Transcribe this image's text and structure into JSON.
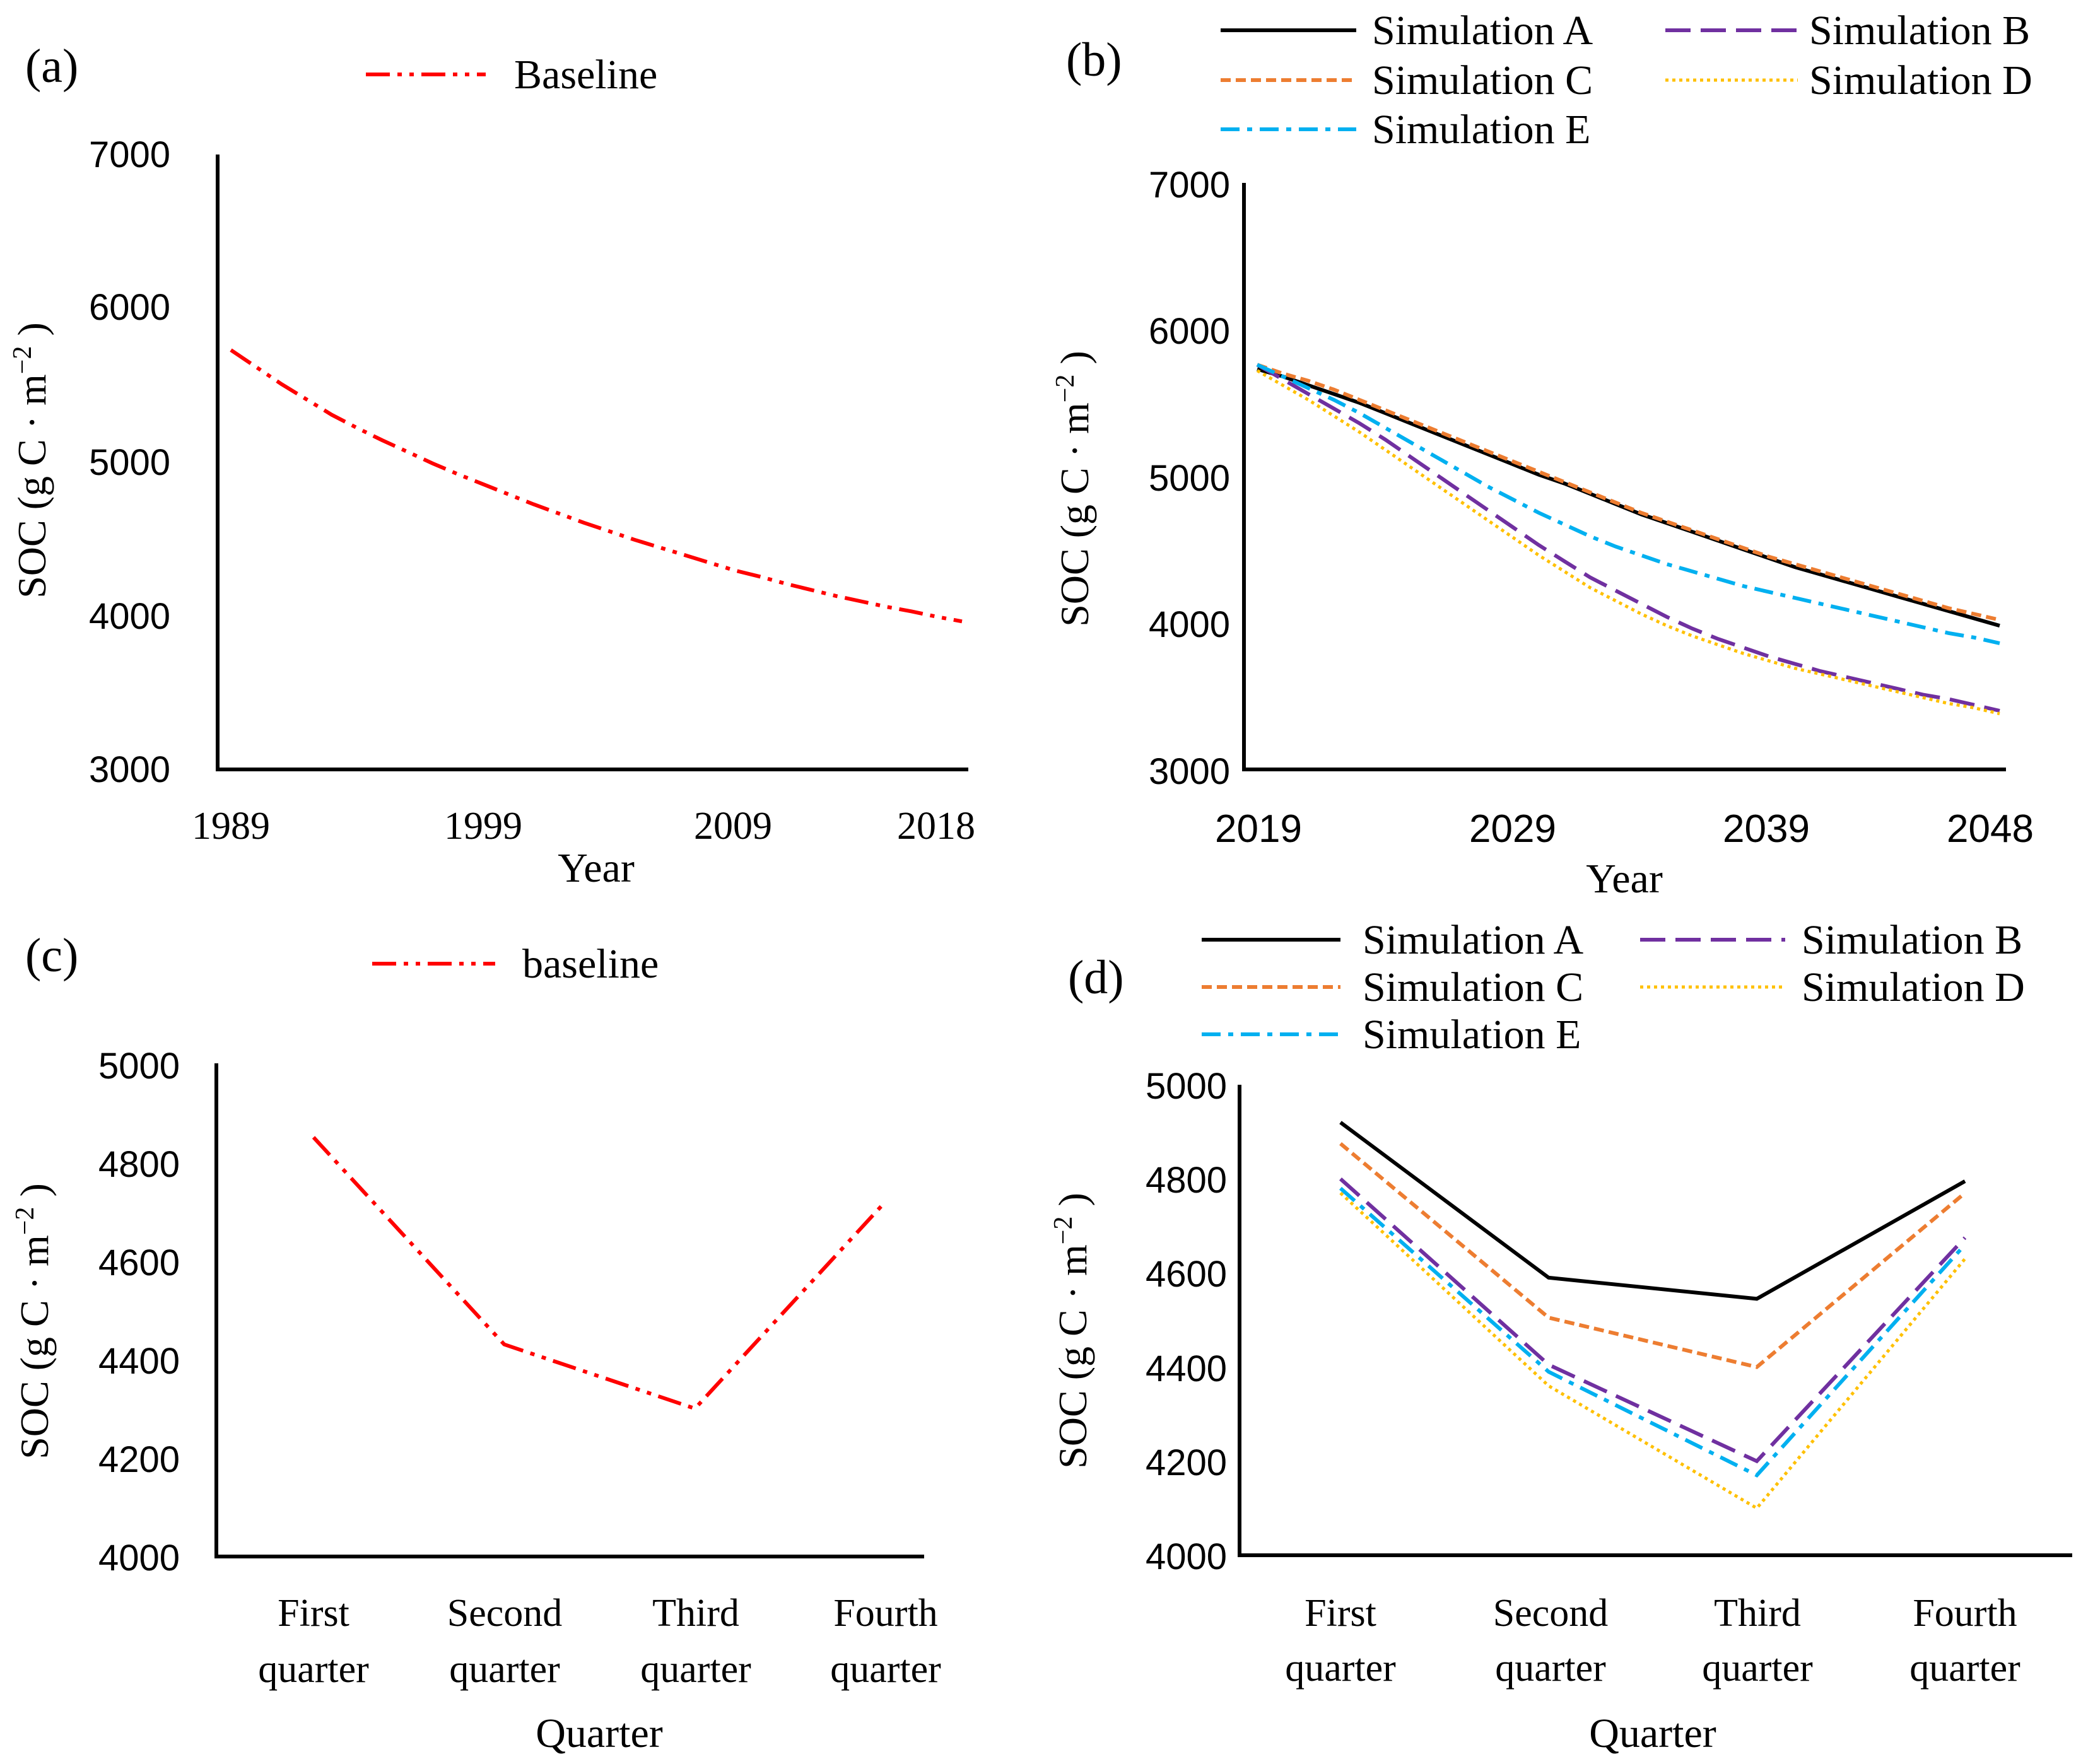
{
  "chart_data": [
    {
      "type": "line",
      "panel": "(a)",
      "x": [
        "1989",
        "1990",
        "1991",
        "1992",
        "1993",
        "1994",
        "1995",
        "1996",
        "1997",
        "1998",
        "1999",
        "2000",
        "2001",
        "2002",
        "2003",
        "2004",
        "2005",
        "2006",
        "2007",
        "2008",
        "2009",
        "2010",
        "2011",
        "2012",
        "2013",
        "2014",
        "2015",
        "2016",
        "2017",
        "2018"
      ],
      "xticks": [
        "1989",
        "1999",
        "2009",
        "2018"
      ],
      "xlabel": "Year",
      "ylabel_main": "SOC (g C · m",
      "ylabel_sup": "−2",
      "ylabel_end": " )",
      "ylim": [
        3000,
        7000
      ],
      "yticks": [
        "3000",
        "4000",
        "5000",
        "6000",
        "7000"
      ],
      "series": [
        {
          "name": "Baseline",
          "color": "#FF0000",
          "dash": "dash-dot-dot",
          "values": [
            5720,
            5610,
            5500,
            5400,
            5300,
            5215,
            5135,
            5060,
            4985,
            4915,
            4850,
            4785,
            4720,
            4660,
            4600,
            4545,
            4490,
            4440,
            4390,
            4340,
            4290,
            4250,
            4205,
            4165,
            4125,
            4090,
            4055,
            4025,
            3990,
            3960
          ]
        }
      ]
    },
    {
      "type": "line",
      "panel": "(b)",
      "x": [
        "2019",
        "2020",
        "2021",
        "2022",
        "2023",
        "2024",
        "2025",
        "2026",
        "2027",
        "2028",
        "2029",
        "2030",
        "2031",
        "2032",
        "2033",
        "2034",
        "2035",
        "2036",
        "2037",
        "2038",
        "2039",
        "2040",
        "2041",
        "2042",
        "2043",
        "2044",
        "2045",
        "2046",
        "2047",
        "2048"
      ],
      "xticks": [
        "2019",
        "2029",
        "2039",
        "2048"
      ],
      "xlabel": "Year",
      "ylabel_main": "SOC (g C · m",
      "ylabel_sup": "−2",
      "ylabel_end": " )",
      "ylim": [
        3000,
        7000
      ],
      "yticks": [
        "3000",
        "4000",
        "5000",
        "6000",
        "7000"
      ],
      "series": [
        {
          "name": "Simulation A",
          "color": "#000000",
          "dash": "solid",
          "values": [
            5730,
            5680,
            5620,
            5560,
            5500,
            5430,
            5360,
            5290,
            5220,
            5150,
            5080,
            5010,
            4950,
            4880,
            4810,
            4740,
            4680,
            4620,
            4560,
            4500,
            4440,
            4380,
            4330,
            4280,
            4230,
            4180,
            4130,
            4080,
            4030,
            3980
          ]
        },
        {
          "name": "Simulation B",
          "color": "#7030A0",
          "dash": "long-dash",
          "values": [
            5760,
            5660,
            5560,
            5460,
            5360,
            5250,
            5130,
            5010,
            4890,
            4770,
            4650,
            4530,
            4420,
            4310,
            4220,
            4130,
            4040,
            3960,
            3890,
            3830,
            3770,
            3720,
            3670,
            3630,
            3590,
            3550,
            3510,
            3480,
            3440,
            3400
          ]
        },
        {
          "name": "Simulation C",
          "color": "#ED7D31",
          "dash": "short-dash",
          "values": [
            5760,
            5700,
            5650,
            5590,
            5520,
            5450,
            5380,
            5310,
            5240,
            5170,
            5100,
            5030,
            4960,
            4890,
            4820,
            4750,
            4690,
            4630,
            4570,
            4510,
            4450,
            4400,
            4350,
            4300,
            4250,
            4200,
            4150,
            4100,
            4060,
            4020
          ]
        },
        {
          "name": "Simulation D",
          "color": "#FFC000",
          "dash": "dotted",
          "values": [
            5720,
            5620,
            5520,
            5410,
            5300,
            5180,
            5060,
            4940,
            4820,
            4700,
            4580,
            4460,
            4350,
            4240,
            4150,
            4060,
            3980,
            3910,
            3850,
            3790,
            3740,
            3690,
            3650,
            3610,
            3570,
            3530,
            3490,
            3450,
            3420,
            3380
          ]
        },
        {
          "name": "Simulation E",
          "color": "#00B0F0",
          "dash": "dash-dot",
          "values": [
            5760,
            5680,
            5600,
            5520,
            5430,
            5330,
            5230,
            5130,
            5030,
            4930,
            4840,
            4750,
            4670,
            4590,
            4520,
            4460,
            4400,
            4350,
            4300,
            4250,
            4210,
            4170,
            4130,
            4090,
            4050,
            4010,
            3970,
            3930,
            3900,
            3860
          ]
        }
      ]
    },
    {
      "type": "line",
      "panel": "(c)",
      "x": [
        "First quarter",
        "Second quarter",
        "Third quarter",
        "Fourth quarter"
      ],
      "xtick_lines": [
        [
          "First",
          "quarter"
        ],
        [
          "Second",
          "quarter"
        ],
        [
          "Third",
          "quarter"
        ],
        [
          "Fourth",
          "quarter"
        ]
      ],
      "xlabel": "Quarter",
      "ylabel_main": "SOC (g C · m",
      "ylabel_sup": "−2",
      "ylabel_end": " )",
      "ylim": [
        4000,
        5000
      ],
      "yticks": [
        "4000",
        "4200",
        "4400",
        "4600",
        "4800",
        "5000"
      ],
      "series": [
        {
          "name": "baseline",
          "color": "#FF0000",
          "dash": "dash-dot-dot",
          "values": [
            4850,
            4430,
            4300,
            4720
          ]
        }
      ]
    },
    {
      "type": "line",
      "panel": "(d)",
      "x": [
        "First quarter",
        "Second quarter",
        "Third quarter",
        "Fourth quarter"
      ],
      "xtick_lines": [
        [
          "First",
          "quarter"
        ],
        [
          "Second",
          "quarter"
        ],
        [
          "Third",
          "quarter"
        ],
        [
          "Fourth",
          "quarter"
        ]
      ],
      "xlabel": "Quarter",
      "ylabel_main": "SOC (g C · m",
      "ylabel_sup": "−2",
      "ylabel_end": " )",
      "ylim": [
        4000,
        5000
      ],
      "yticks": [
        "4000",
        "4200",
        "4400",
        "4600",
        "4800",
        "5000"
      ],
      "series": [
        {
          "name": "Simulation A",
          "color": "#000000",
          "dash": "solid",
          "values": [
            4920,
            4590,
            4545,
            4795
          ]
        },
        {
          "name": "Simulation B",
          "color": "#7030A0",
          "dash": "long-dash",
          "values": [
            4800,
            4405,
            4200,
            4675
          ]
        },
        {
          "name": "Simulation C",
          "color": "#ED7D31",
          "dash": "short-dash",
          "values": [
            4875,
            4505,
            4400,
            4770
          ]
        },
        {
          "name": "Simulation D",
          "color": "#FFC000",
          "dash": "dotted",
          "values": [
            4770,
            4360,
            4100,
            4630
          ]
        },
        {
          "name": "Simulation E",
          "color": "#00B0F0",
          "dash": "dash-dot",
          "values": [
            4780,
            4390,
            4170,
            4660
          ]
        }
      ]
    }
  ]
}
